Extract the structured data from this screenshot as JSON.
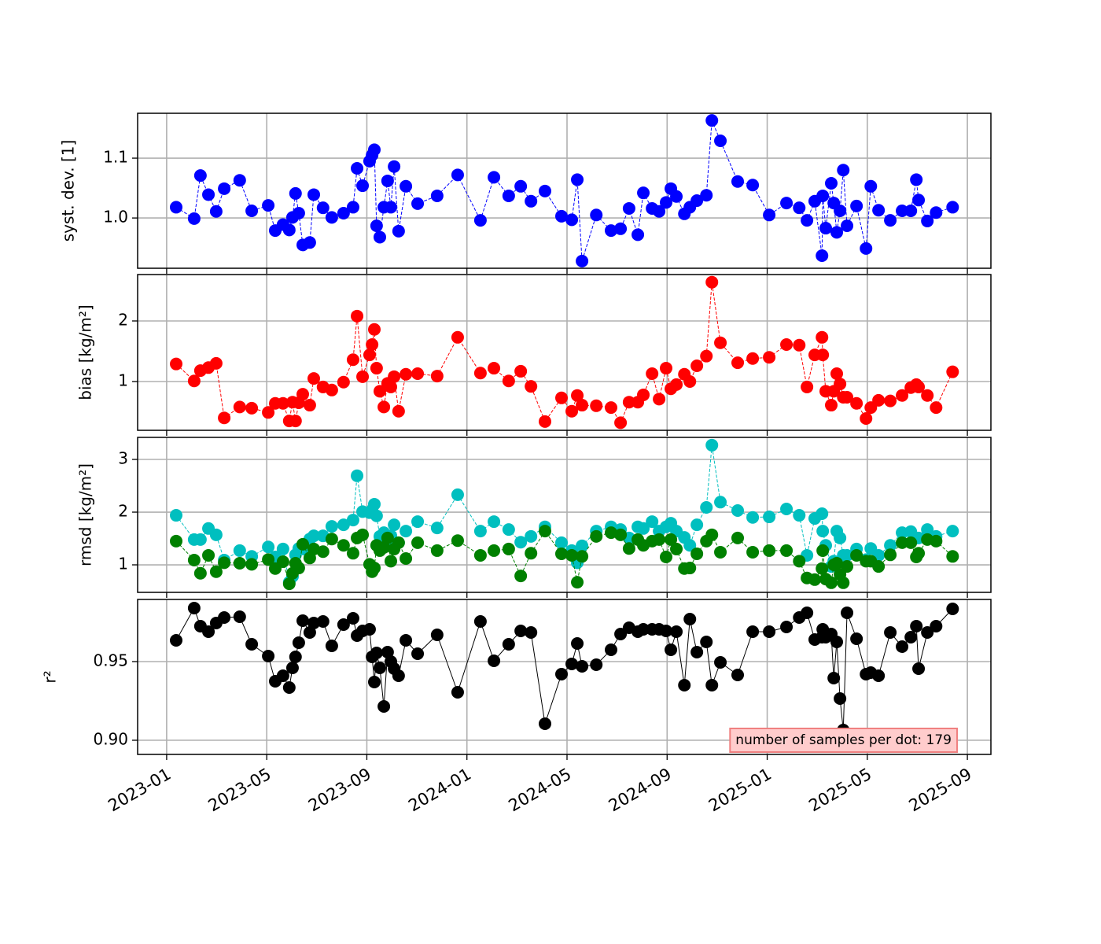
{
  "chart_data": [
    {
      "type": "line",
      "ylabel": "syst. dev. [1]",
      "linestyle": "dashed",
      "grid": true,
      "xlim": [
        -1.16,
        32.94
      ],
      "ylim": [
        0.916,
        1.175
      ],
      "yticks": [
        {
          "value": 1,
          "label": "1.0"
        },
        1.1
      ],
      "x": [
        0.38,
        1.1,
        1.35,
        1.67,
        1.98,
        2.3,
        2.92,
        3.4,
        4.06,
        4.34,
        4.65,
        4.9,
        5.03,
        5.15,
        5.28,
        5.44,
        5.72,
        5.88,
        6.25,
        6.6,
        7.07,
        7.45,
        7.61,
        7.83,
        8.11,
        8.21,
        8.3,
        8.39,
        8.52,
        8.68,
        8.83,
        8.96,
        9.09,
        9.27,
        9.56,
        10.03,
        10.81,
        11.63,
        12.54,
        13.08,
        13.67,
        14.15,
        14.56,
        15.12,
        15.78,
        16.19,
        16.41,
        16.6,
        17.17,
        17.76,
        18.14,
        18.48,
        18.83,
        19.05,
        19.4,
        19.68,
        19.96,
        20.15,
        20.37,
        20.69,
        20.91,
        21.19,
        21.57,
        21.79,
        22.13,
        22.82,
        23.42,
        24.08,
        24.77,
        25.28,
        25.59,
        25.9,
        26.19,
        26.22,
        26.34,
        26.56,
        26.66,
        26.78,
        26.91,
        27.04,
        27.19,
        27.57,
        27.95,
        28.14,
        28.45,
        28.92,
        29.39,
        29.74,
        29.96,
        30.05,
        30.4,
        30.75,
        31.41
      ],
      "series": [
        {
          "color": "#0000ff",
          "values": [
            1.018,
            0.999,
            1.071,
            1.039,
            1.011,
            1.049,
            1.063,
            1.012,
            1.021,
            0.979,
            0.989,
            0.98,
            1.001,
            1.041,
            1.008,
            0.955,
            0.959,
            1.039,
            1.017,
            1.001,
            1.008,
            1.018,
            1.083,
            1.054,
            1.095,
            1.105,
            1.114,
            0.987,
            0.968,
            1.018,
            1.062,
            1.018,
            1.086,
            0.978,
            1.053,
            1.024,
            1.037,
            1.072,
            0.996,
            1.068,
            1.037,
            1.053,
            1.028,
            1.045,
            1.003,
            0.997,
            1.064,
            0.928,
            1.005,
            0.979,
            0.982,
            1.016,
            0.972,
            1.042,
            1.016,
            1.011,
            1.026,
            1.049,
            1.036,
            1.007,
            1.018,
            1.029,
            1.038,
            1.163,
            1.129,
            1.061,
            1.055,
            1.005,
            1.025,
            1.017,
            0.996,
            1.028,
            0.937,
            1.037,
            0.983,
            1.058,
            1.025,
            0.976,
            1.012,
            1.08,
            0.987,
            1.02,
            0.949,
            1.053,
            1.013,
            0.996,
            1.012,
            1.012,
            1.064,
            1.03,
            0.995,
            1.009,
            1.018
          ]
        }
      ]
    },
    {
      "type": "line",
      "ylabel": "bias [kg/m²]",
      "linestyle": "dashed",
      "grid": true,
      "xlim": [
        -1.16,
        32.94
      ],
      "ylim": [
        0.195,
        2.766
      ],
      "yticks": [
        1,
        2
      ],
      "x": [
        0.38,
        1.1,
        1.35,
        1.67,
        1.98,
        2.3,
        2.92,
        3.4,
        4.06,
        4.34,
        4.65,
        4.9,
        5.03,
        5.15,
        5.28,
        5.44,
        5.72,
        5.88,
        6.25,
        6.6,
        7.07,
        7.45,
        7.61,
        7.83,
        8.11,
        8.21,
        8.3,
        8.39,
        8.52,
        8.68,
        8.83,
        8.96,
        9.09,
        9.27,
        9.56,
        10.03,
        10.81,
        11.63,
        12.54,
        13.08,
        13.67,
        14.15,
        14.56,
        15.12,
        15.78,
        16.19,
        16.41,
        16.6,
        17.17,
        17.76,
        18.14,
        18.48,
        18.83,
        19.05,
        19.4,
        19.68,
        19.96,
        20.15,
        20.37,
        20.69,
        20.91,
        21.19,
        21.57,
        21.79,
        22.13,
        22.82,
        23.42,
        24.08,
        24.77,
        25.28,
        25.59,
        25.9,
        26.19,
        26.22,
        26.34,
        26.56,
        26.66,
        26.78,
        26.91,
        27.04,
        27.19,
        27.57,
        27.95,
        28.14,
        28.45,
        28.92,
        29.39,
        29.74,
        29.96,
        30.05,
        30.4,
        30.75,
        31.41
      ],
      "series": [
        {
          "color": "#ff0000",
          "values": [
            1.29,
            1.01,
            1.18,
            1.23,
            1.3,
            0.4,
            0.58,
            0.56,
            0.49,
            0.64,
            0.64,
            0.35,
            0.66,
            0.35,
            0.65,
            0.79,
            0.61,
            1.05,
            0.91,
            0.86,
            0.99,
            1.36,
            2.08,
            1.08,
            1.44,
            1.61,
            1.86,
            1.22,
            0.84,
            0.58,
            0.97,
            0.91,
            1.08,
            0.51,
            1.12,
            1.13,
            1.09,
            1.73,
            1.14,
            1.22,
            1.01,
            1.17,
            0.92,
            0.34,
            0.73,
            0.51,
            0.77,
            0.61,
            0.6,
            0.57,
            0.32,
            0.66,
            0.66,
            0.78,
            1.13,
            0.71,
            1.22,
            0.88,
            0.95,
            1.12,
            1.0,
            1.26,
            1.42,
            2.64,
            1.64,
            1.31,
            1.38,
            1.4,
            1.61,
            1.6,
            0.91,
            1.44,
            1.73,
            1.44,
            0.84,
            0.61,
            0.84,
            1.13,
            0.96,
            0.74,
            0.74,
            0.64,
            0.39,
            0.57,
            0.69,
            0.68,
            0.77,
            0.9,
            0.95,
            0.91,
            0.77,
            0.57,
            1.16
          ]
        }
      ]
    },
    {
      "type": "line",
      "ylabel": "rmsd [kg/m²]",
      "linestyle": "dashed",
      "grid": true,
      "xlim": [
        -1.16,
        32.94
      ],
      "ylim": [
        0.478,
        3.418
      ],
      "yticks": [
        1,
        2,
        3
      ],
      "x": [
        0.38,
        1.1,
        1.35,
        1.67,
        1.98,
        2.3,
        2.92,
        3.4,
        4.06,
        4.34,
        4.65,
        4.9,
        5.03,
        5.15,
        5.28,
        5.44,
        5.72,
        5.88,
        6.25,
        6.6,
        7.07,
        7.45,
        7.61,
        7.83,
        8.11,
        8.21,
        8.3,
        8.39,
        8.52,
        8.68,
        8.83,
        8.96,
        9.09,
        9.27,
        9.56,
        10.03,
        10.81,
        11.63,
        12.54,
        13.08,
        13.67,
        14.15,
        14.56,
        15.12,
        15.78,
        16.19,
        16.41,
        16.6,
        17.17,
        17.76,
        18.14,
        18.48,
        18.83,
        19.05,
        19.4,
        19.68,
        19.96,
        20.15,
        20.37,
        20.69,
        20.91,
        21.19,
        21.57,
        21.79,
        22.13,
        22.82,
        23.42,
        24.08,
        24.77,
        25.28,
        25.59,
        25.9,
        26.19,
        26.22,
        26.34,
        26.56,
        26.66,
        26.78,
        26.91,
        27.04,
        27.19,
        27.57,
        27.95,
        28.14,
        28.45,
        28.92,
        29.39,
        29.74,
        29.96,
        30.05,
        30.4,
        30.75,
        31.41
      ],
      "series": [
        {
          "color": "#00bfbf",
          "values": [
            1.94,
            1.48,
            1.48,
            1.69,
            1.57,
            1.09,
            1.27,
            1.16,
            1.34,
            1.15,
            1.3,
            0.67,
            0.78,
            1.19,
            1.31,
            1.3,
            1.49,
            1.55,
            1.55,
            1.73,
            1.76,
            1.85,
            2.69,
            2.01,
            1.99,
            2.04,
            2.15,
            1.93,
            1.54,
            1.61,
            1.49,
            1.55,
            1.76,
            1.42,
            1.64,
            1.82,
            1.7,
            2.33,
            1.64,
            1.82,
            1.67,
            1.43,
            1.54,
            1.72,
            1.42,
            1.27,
            1.04,
            1.36,
            1.64,
            1.72,
            1.67,
            1.51,
            1.72,
            1.69,
            1.82,
            1.64,
            1.72,
            1.79,
            1.64,
            1.52,
            1.37,
            1.76,
            2.09,
            3.27,
            2.19,
            2.03,
            1.9,
            1.91,
            2.06,
            1.94,
            1.18,
            1.88,
            1.97,
            1.64,
            1.37,
            0.97,
            1.07,
            1.64,
            1.51,
            1.18,
            1.18,
            1.3,
            1.1,
            1.31,
            1.18,
            1.37,
            1.61,
            1.63,
            1.51,
            1.51,
            1.67,
            1.54,
            1.64
          ]
        },
        {
          "color": "#008000",
          "values": [
            1.45,
            1.09,
            0.84,
            1.18,
            0.87,
            1.04,
            1.03,
            1.01,
            1.1,
            0.93,
            1.06,
            0.64,
            0.84,
            1.03,
            0.94,
            1.39,
            1.13,
            1.3,
            1.25,
            1.49,
            1.37,
            1.22,
            1.51,
            1.57,
            1.01,
            0.87,
            0.94,
            1.37,
            1.27,
            1.33,
            1.51,
            1.07,
            1.3,
            1.42,
            1.12,
            1.42,
            1.27,
            1.46,
            1.18,
            1.27,
            1.3,
            0.79,
            1.22,
            1.64,
            1.21,
            1.18,
            0.67,
            1.16,
            1.54,
            1.61,
            1.57,
            1.31,
            1.48,
            1.37,
            1.45,
            1.48,
            1.15,
            1.48,
            1.3,
            0.93,
            0.94,
            1.21,
            1.45,
            1.57,
            1.24,
            1.51,
            1.24,
            1.27,
            1.27,
            1.07,
            0.75,
            0.72,
            0.93,
            1.27,
            0.73,
            0.66,
            1.0,
            1.03,
            0.82,
            0.66,
            0.97,
            1.18,
            1.07,
            1.07,
            0.97,
            1.19,
            1.42,
            1.42,
            1.15,
            1.22,
            1.48,
            1.45,
            1.16
          ]
        }
      ]
    },
    {
      "type": "line",
      "ylabel": "r²",
      "linestyle": "solid",
      "grid": true,
      "annotation": "number of samples per dot: 179",
      "annotation_color": "#ffcccc",
      "xlim": [
        -1.16,
        32.94
      ],
      "ylim": [
        0.891,
        0.9895
      ],
      "yticks": [
        {
          "value": 0.9,
          "label": "0.90"
        },
        0.95
      ],
      "xticks": [
        {
          "value": 0,
          "label": "2023-01"
        },
        {
          "value": 4,
          "label": "2023-05"
        },
        {
          "value": 8,
          "label": "2023-09"
        },
        {
          "value": 12,
          "label": "2024-01"
        },
        {
          "value": 16,
          "label": "2024-05"
        },
        {
          "value": 20,
          "label": "2024-09"
        },
        {
          "value": 24,
          "label": "2025-01"
        },
        {
          "value": 28,
          "label": "2025-05"
        },
        {
          "value": 32,
          "label": "2025-09"
        }
      ],
      "x": [
        0.38,
        1.1,
        1.35,
        1.67,
        1.98,
        2.3,
        2.92,
        3.4,
        4.06,
        4.34,
        4.65,
        4.9,
        5.03,
        5.15,
        5.28,
        5.44,
        5.72,
        5.88,
        6.25,
        6.6,
        7.07,
        7.45,
        7.61,
        7.83,
        8.11,
        8.21,
        8.3,
        8.39,
        8.52,
        8.68,
        8.83,
        8.96,
        9.09,
        9.27,
        9.56,
        10.03,
        10.81,
        11.63,
        12.54,
        13.08,
        13.67,
        14.15,
        14.56,
        15.12,
        15.78,
        16.19,
        16.41,
        16.6,
        17.17,
        17.76,
        18.14,
        18.48,
        18.83,
        19.05,
        19.4,
        19.68,
        19.96,
        20.15,
        20.37,
        20.69,
        20.91,
        21.19,
        21.57,
        21.79,
        22.13,
        22.82,
        23.42,
        24.08,
        24.77,
        25.28,
        25.59,
        25.9,
        26.19,
        26.22,
        26.34,
        26.56,
        26.66,
        26.78,
        26.91,
        27.04,
        27.19,
        27.57,
        27.95,
        28.14,
        28.45,
        28.92,
        29.39,
        29.74,
        29.96,
        30.05,
        30.4,
        30.75,
        31.41
      ],
      "series": [
        {
          "color": "#000000",
          "values": [
            0.9635,
            0.984,
            0.9725,
            0.969,
            0.9745,
            0.978,
            0.9785,
            0.961,
            0.9535,
            0.9375,
            0.941,
            0.9335,
            0.946,
            0.953,
            0.962,
            0.976,
            0.9685,
            0.9745,
            0.9755,
            0.96,
            0.9735,
            0.9775,
            0.9665,
            0.9695,
            0.9705,
            0.953,
            0.937,
            0.9555,
            0.946,
            0.9215,
            0.956,
            0.95,
            0.9455,
            0.941,
            0.9635,
            0.955,
            0.967,
            0.9305,
            0.9755,
            0.9505,
            0.961,
            0.9695,
            0.9685,
            0.9105,
            0.942,
            0.9485,
            0.9615,
            0.947,
            0.948,
            0.9575,
            0.9675,
            0.9715,
            0.969,
            0.9705,
            0.9705,
            0.9705,
            0.9695,
            0.9575,
            0.969,
            0.935,
            0.977,
            0.956,
            0.9625,
            0.935,
            0.9495,
            0.9415,
            0.969,
            0.969,
            0.972,
            0.978,
            0.981,
            0.964,
            0.9655,
            0.9705,
            0.9655,
            0.9675,
            0.9395,
            0.9625,
            0.9265,
            0.9065,
            0.981,
            0.9645,
            0.942,
            0.943,
            0.941,
            0.9685,
            0.9595,
            0.9655,
            0.9725,
            0.9455,
            0.9685,
            0.9725,
            0.9835
          ]
        }
      ]
    }
  ]
}
